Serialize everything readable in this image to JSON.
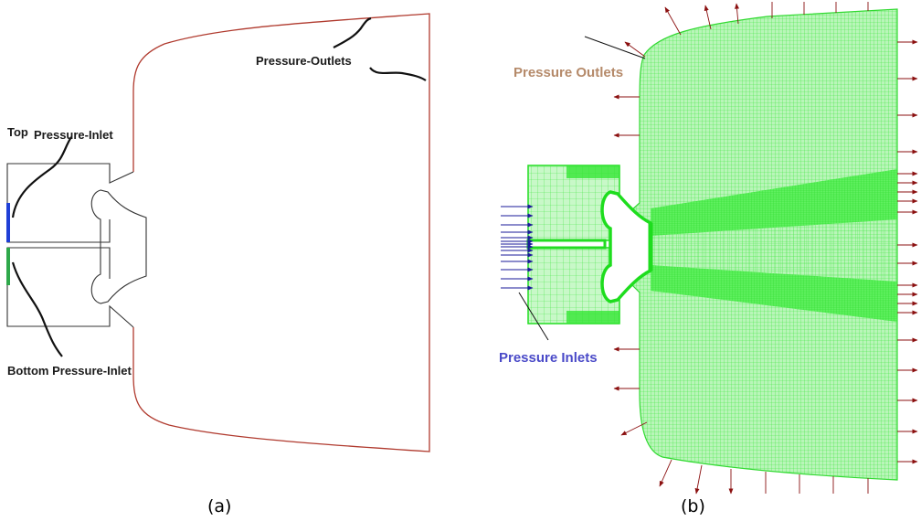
{
  "panel_a": {
    "caption": "(a)",
    "labels": {
      "pressure_outlets": "Pressure-Outlets",
      "top_inlet_prefix": "Top",
      "top_inlet": "Pressure-Inlet",
      "bottom_inlet": "Bottom Pressure-Inlet"
    },
    "colors": {
      "outlet_boundary": "#b03a2e",
      "top_inlet": "#1f3fd6",
      "bottom_inlet": "#2ea84a",
      "walls": "#333333"
    }
  },
  "panel_b": {
    "caption": "(b)",
    "labels": {
      "pressure_outlets": "Pressure Outlets",
      "pressure_inlets": "Pressure Inlets"
    },
    "colors": {
      "mesh": "#33ee33",
      "mesh_dense": "#22dd22",
      "outlet_arrows": "#8b1010",
      "inlet_arrows": "#1a1a9a",
      "outlets_label": "#b58a6a",
      "inlets_label": "#4a4ac8"
    }
  }
}
